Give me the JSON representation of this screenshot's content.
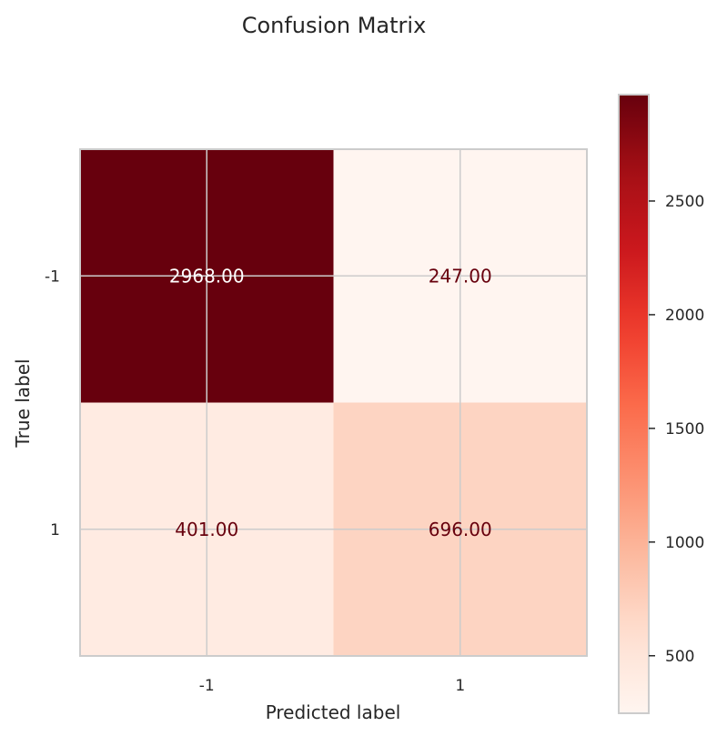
{
  "chart_data": {
    "type": "heatmap",
    "title": "Confusion Matrix",
    "xlabel": "Predicted label",
    "ylabel": "True label",
    "x_categories": [
      "-1",
      "1"
    ],
    "y_categories": [
      "-1",
      "1"
    ],
    "matrix": [
      [
        2968,
        247
      ],
      [
        401,
        696
      ]
    ],
    "cell_labels": [
      [
        "2968.00",
        "247.00"
      ],
      [
        "401.00",
        "696.00"
      ]
    ],
    "colormap": "Reds",
    "color_range": [
      247,
      2968
    ],
    "colorbar_ticks": [
      500,
      1000,
      1500,
      2000,
      2500
    ],
    "colorbar_tick_labels": [
      "500",
      "1000",
      "1500",
      "2000",
      "2500"
    ],
    "grid": true,
    "colors": {
      "low": "#fff5f0",
      "high": "#67000d",
      "dark_text": "#67000d",
      "light_text": "#ffffff",
      "grid": "#cccccc"
    }
  }
}
